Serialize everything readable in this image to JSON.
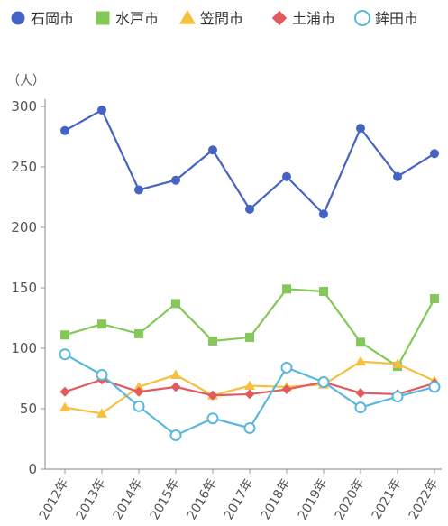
{
  "chart_data": {
    "type": "line",
    "title": "",
    "xlabel": "",
    "ylabel": "（人）",
    "ylim": [
      0,
      300
    ],
    "yticks": [
      0,
      50,
      100,
      150,
      200,
      250,
      300
    ],
    "grid": false,
    "legend_position": "top",
    "categories": [
      "2012年",
      "2013年",
      "2014年",
      "2015年",
      "2016年",
      "2017年",
      "2018年",
      "2019年",
      "2020年",
      "2021年",
      "2022年"
    ],
    "series": [
      {
        "name": "石岡市",
        "color": "#4563c5",
        "marker": "circle-filled",
        "values": [
          280,
          297,
          231,
          239,
          264,
          215,
          242,
          211,
          282,
          242,
          261
        ]
      },
      {
        "name": "水戸市",
        "color": "#84c85a",
        "marker": "square",
        "values": [
          111,
          120,
          112,
          137,
          106,
          109,
          149,
          147,
          105,
          85,
          141
        ]
      },
      {
        "name": "笠間市",
        "color": "#f5c040",
        "marker": "triangle",
        "values": [
          51,
          46,
          68,
          78,
          61,
          69,
          68,
          70,
          89,
          87,
          73
        ]
      },
      {
        "name": "土浦市",
        "color": "#e25a60",
        "marker": "diamond",
        "values": [
          64,
          74,
          64,
          68,
          61,
          62,
          66,
          72,
          63,
          62,
          71
        ]
      },
      {
        "name": "鉾田市",
        "color": "#5ab8dd",
        "marker": "circle-open",
        "values": [
          95,
          78,
          52,
          28,
          42,
          34,
          84,
          72,
          51,
          60,
          68
        ]
      }
    ]
  }
}
